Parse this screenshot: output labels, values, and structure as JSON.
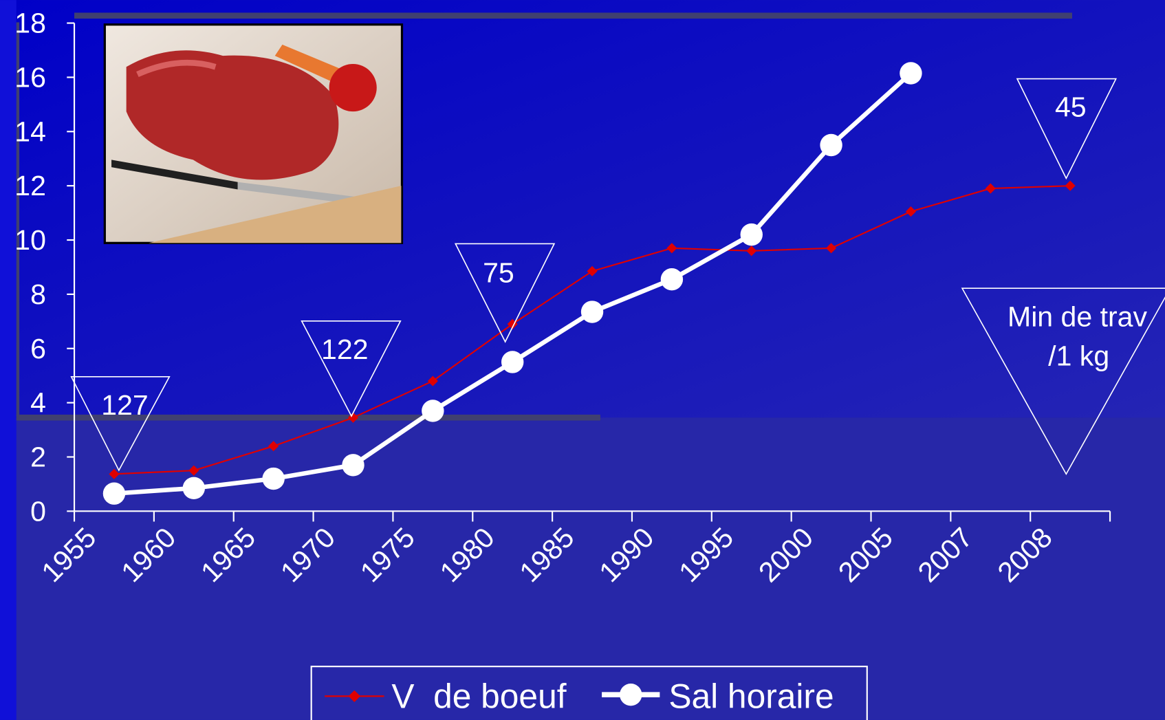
{
  "chart_data": {
    "type": "line",
    "categories": [
      "1955",
      "1960",
      "1965",
      "1970",
      "1975",
      "1980",
      "1985",
      "1990",
      "1995",
      "2000",
      "2005",
      "2007",
      "2008"
    ],
    "series": [
      {
        "name": "V  de boeuf",
        "color": "#e00000",
        "marker": "diamond",
        "values": [
          1.37,
          1.5,
          2.4,
          3.45,
          4.8,
          6.9,
          8.85,
          9.7,
          9.6,
          9.7,
          11.05,
          11.9,
          12.0
        ]
      },
      {
        "name": "Sal horaire",
        "color": "#ffffff",
        "marker": "circle",
        "values": [
          0.65,
          0.85,
          1.2,
          1.7,
          3.7,
          5.5,
          7.35,
          8.55,
          10.2,
          13.5,
          16.15,
          null,
          null
        ]
      }
    ],
    "ylim": [
      0,
      18
    ],
    "yticks": [
      0,
      2,
      4,
      6,
      8,
      10,
      12,
      14,
      16,
      18
    ],
    "annotations": [
      "127",
      "122",
      "75",
      "45",
      [
        "Min de trav",
        "/1 kg"
      ]
    ]
  }
}
